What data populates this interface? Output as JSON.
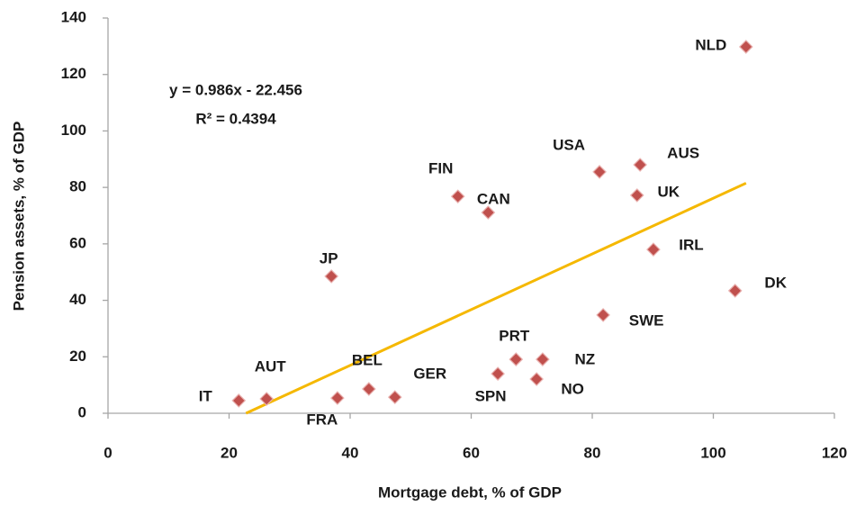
{
  "chart_data": {
    "type": "scatter",
    "x_label": "Mortgage debt, % of GDP",
    "y_label": "Pension assets, % of GDP",
    "labels": [
      "IT",
      "AUT",
      "FRA",
      "BEL",
      "GER",
      "JP",
      "FIN",
      "CAN",
      "SPN",
      "PRT",
      "NO",
      "NZ",
      "USA",
      "SWE",
      "UK",
      "AUS",
      "IRL",
      "DK",
      "NLD"
    ],
    "x": [
      21.6,
      26.2,
      37.9,
      43.1,
      47.4,
      36.9,
      57.8,
      62.8,
      64.4,
      67.4,
      70.8,
      71.8,
      81.2,
      81.8,
      87.4,
      87.9,
      90.1,
      103.6,
      105.4
    ],
    "y": [
      4.5,
      5.1,
      5.4,
      8.6,
      5.7,
      48.5,
      76.8,
      71.1,
      14.0,
      19.1,
      12.1,
      19.1,
      85.5,
      34.8,
      77.2,
      88.0,
      58.0,
      43.4,
      129.8
    ],
    "color": "#c0504d",
    "trendline": {
      "x": [
        22.8,
        105.4
      ],
      "y": [
        0,
        81.5
      ],
      "color": "#f5b800",
      "equation": "y = 0.986x - 22.456",
      "r_squared": "R² = 0.4394"
    },
    "xlim": [
      0,
      120
    ],
    "ylim": [
      0,
      140
    ],
    "xticks": [
      0,
      20,
      40,
      60,
      80,
      100,
      120
    ],
    "yticks": [
      0,
      20,
      40,
      60,
      80,
      100,
      120,
      140
    ],
    "grid": false
  }
}
